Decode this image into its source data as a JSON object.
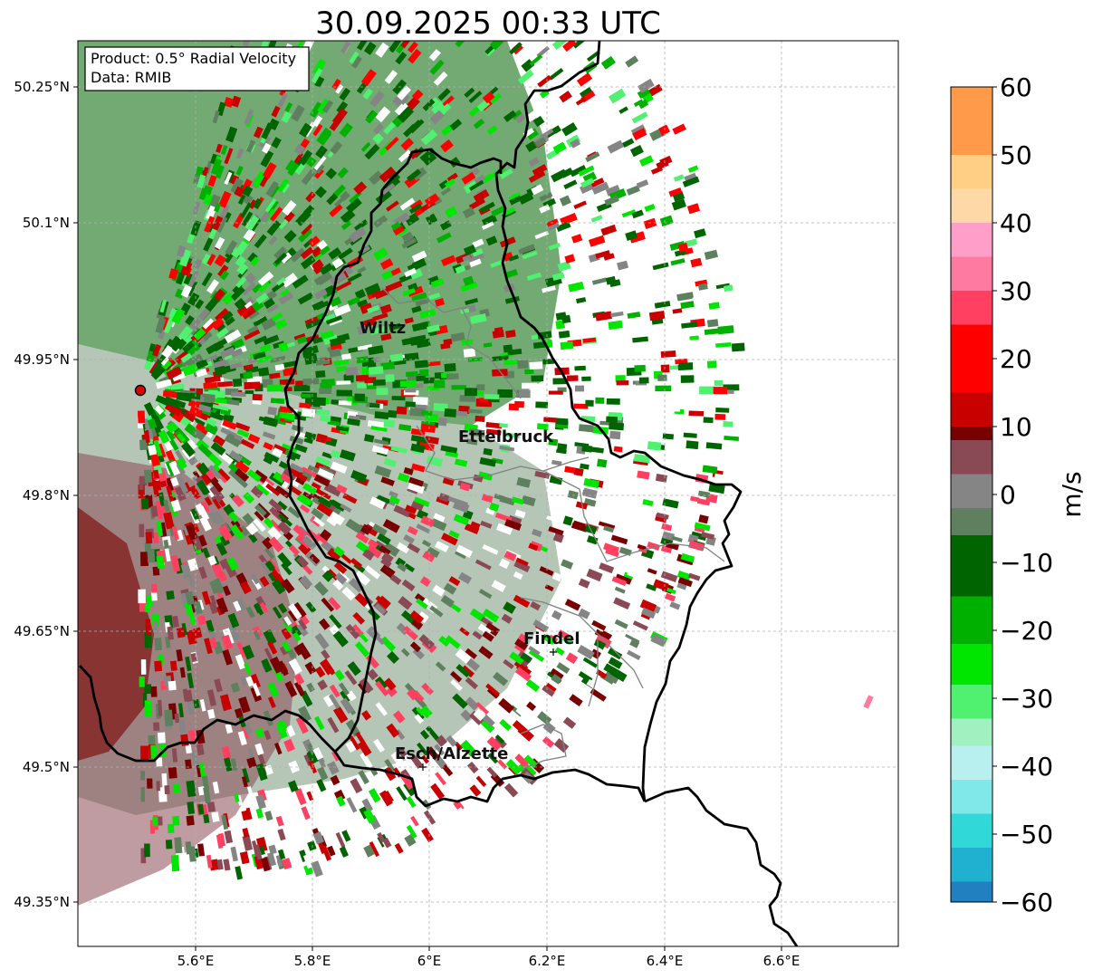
{
  "title": "30.09.2025 00:33 UTC",
  "info": {
    "product": "Product: 0.5° Radial Velocity",
    "data": "Data: RMIB"
  },
  "map": {
    "lon_ticks": [
      "5.6°E",
      "5.8°E",
      "6°E",
      "6.2°E",
      "6.4°E",
      "6.6°E"
    ],
    "lat_ticks": [
      "50.25°N",
      "50.1°N",
      "49.95°N",
      "49.8°N",
      "49.65°N",
      "49.5°N",
      "49.35°N"
    ],
    "cities": [
      {
        "name": "Wiltz"
      },
      {
        "name": "Ettelbruck"
      },
      {
        "name": "Findel"
      },
      {
        "name": "Esch/Alzette"
      }
    ],
    "radar_site": "radar-site-marker",
    "grid": "on"
  },
  "colorbar": {
    "label": "m/s",
    "ticks": [
      "60",
      "50",
      "40",
      "30",
      "20",
      "10",
      "0",
      "−10",
      "−20",
      "−30",
      "−40",
      "−50",
      "−60"
    ],
    "range": [
      -60,
      60
    ],
    "colors": {
      "v60": "#ff9a4a",
      "v50": "#ffcf85",
      "v45": "#ffd8a8",
      "v40": "#ff9ec8",
      "v35": "#ff7aa0",
      "v30": "#ff4060",
      "v25": "#ff0000",
      "v15": "#c80000",
      "v10": "#780000",
      "v5": "#8a4a55",
      "v0": "#858585",
      "vm5": "#5e805e",
      "vm10": "#006400",
      "vm20": "#00b000",
      "vm25": "#00e600",
      "vm30": "#50f070",
      "vm35": "#a0f0c0",
      "vm40": "#b8f0f0",
      "vm45": "#80e8e8",
      "vm50": "#30d8d8",
      "vm55": "#20b0d0",
      "vm60": "#2080c0"
    }
  }
}
